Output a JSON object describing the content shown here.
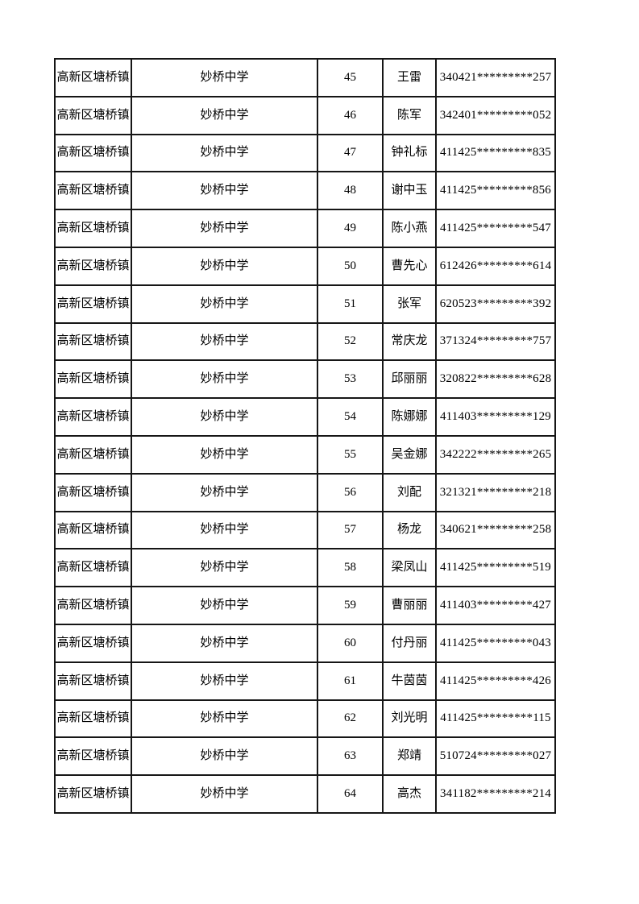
{
  "page": {
    "background_color": "#ffffff",
    "border_color": "#161616"
  },
  "table": {
    "columns": [
      "district",
      "school",
      "serial",
      "name",
      "id_number"
    ],
    "rows": [
      {
        "district": "高新区塘桥镇",
        "school": "妙桥中学",
        "num": "45",
        "name": "王雷",
        "id": "340421*********257"
      },
      {
        "district": "高新区塘桥镇",
        "school": "妙桥中学",
        "num": "46",
        "name": "陈军",
        "id": "342401*********052"
      },
      {
        "district": "高新区塘桥镇",
        "school": "妙桥中学",
        "num": "47",
        "name": "钟礼标",
        "id": "411425*********835"
      },
      {
        "district": "高新区塘桥镇",
        "school": "妙桥中学",
        "num": "48",
        "name": "谢中玉",
        "id": "411425*********856"
      },
      {
        "district": "高新区塘桥镇",
        "school": "妙桥中学",
        "num": "49",
        "name": "陈小燕",
        "id": "411425*********547"
      },
      {
        "district": "高新区塘桥镇",
        "school": "妙桥中学",
        "num": "50",
        "name": "曹先心",
        "id": "612426*********614"
      },
      {
        "district": "高新区塘桥镇",
        "school": "妙桥中学",
        "num": "51",
        "name": "张军",
        "id": "620523*********392"
      },
      {
        "district": "高新区塘桥镇",
        "school": "妙桥中学",
        "num": "52",
        "name": "常庆龙",
        "id": "371324*********757"
      },
      {
        "district": "高新区塘桥镇",
        "school": "妙桥中学",
        "num": "53",
        "name": "邱丽丽",
        "id": "320822*********628"
      },
      {
        "district": "高新区塘桥镇",
        "school": "妙桥中学",
        "num": "54",
        "name": "陈娜娜",
        "id": "411403*********129"
      },
      {
        "district": "高新区塘桥镇",
        "school": "妙桥中学",
        "num": "55",
        "name": "吴金娜",
        "id": "342222*********265"
      },
      {
        "district": "高新区塘桥镇",
        "school": "妙桥中学",
        "num": "56",
        "name": "刘配",
        "id": "321321*********218"
      },
      {
        "district": "高新区塘桥镇",
        "school": "妙桥中学",
        "num": "57",
        "name": "杨龙",
        "id": "340621*********258"
      },
      {
        "district": "高新区塘桥镇",
        "school": "妙桥中学",
        "num": "58",
        "name": "梁凤山",
        "id": "411425*********519"
      },
      {
        "district": "高新区塘桥镇",
        "school": "妙桥中学",
        "num": "59",
        "name": "曹丽丽",
        "id": "411403*********427"
      },
      {
        "district": "高新区塘桥镇",
        "school": "妙桥中学",
        "num": "60",
        "name": "付丹丽",
        "id": "411425*********043"
      },
      {
        "district": "高新区塘桥镇",
        "school": "妙桥中学",
        "num": "61",
        "name": "牛茵茵",
        "id": "411425*********426"
      },
      {
        "district": "高新区塘桥镇",
        "school": "妙桥中学",
        "num": "62",
        "name": "刘光明",
        "id": "411425*********115"
      },
      {
        "district": "高新区塘桥镇",
        "school": "妙桥中学",
        "num": "63",
        "name": "郑靖",
        "id": "510724*********027"
      },
      {
        "district": "高新区塘桥镇",
        "school": "妙桥中学",
        "num": "64",
        "name": "高杰",
        "id": "341182*********214"
      }
    ]
  }
}
